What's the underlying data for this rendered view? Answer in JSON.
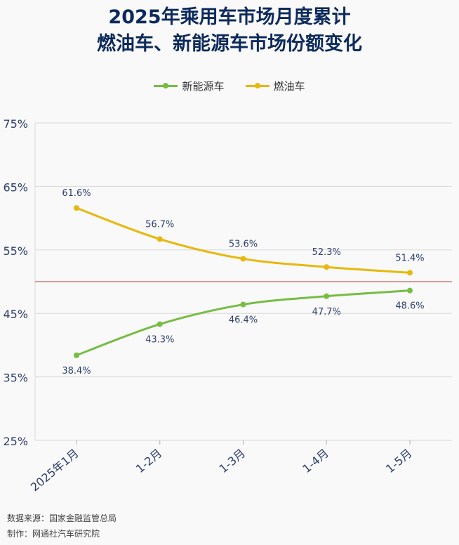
{
  "title": {
    "line1": "2025年乘用车市场月度累计",
    "line2": "燃油车、新能源车市场份额变化"
  },
  "colors": {
    "nev": "#76bd43",
    "fuel": "#e8b80c",
    "reference": "#c0392b",
    "grid": "#d9d9d9",
    "axis_text": "#2d3e6e",
    "title": "#0d2a5c"
  },
  "chart_data": {
    "type": "line",
    "categories": [
      "2025年1月",
      "1-2月",
      "1-3月",
      "1-4月",
      "1-5月"
    ],
    "series": [
      {
        "name": "新能源车",
        "values": [
          38.4,
          43.3,
          46.4,
          47.7,
          48.6
        ],
        "labels": [
          "38.4%",
          "43.3%",
          "46.4%",
          "47.7%",
          "48.6%"
        ]
      },
      {
        "name": "燃油车",
        "values": [
          61.6,
          56.7,
          53.6,
          52.3,
          51.4
        ],
        "labels": [
          "61.6%",
          "56.7%",
          "53.6%",
          "52.3%",
          "51.4%"
        ]
      }
    ],
    "ylim": [
      25,
      75
    ],
    "yticks": [
      25,
      35,
      45,
      55,
      65,
      75
    ],
    "ytick_labels": [
      "25%",
      "35%",
      "45%",
      "55%",
      "65%",
      "75%"
    ],
    "reference_line": 50,
    "grid": true,
    "legend_position": "top-center"
  },
  "footer": {
    "source": "数据来源：国家金融监管总局",
    "producer": "制作：网通社汽车研究院"
  }
}
